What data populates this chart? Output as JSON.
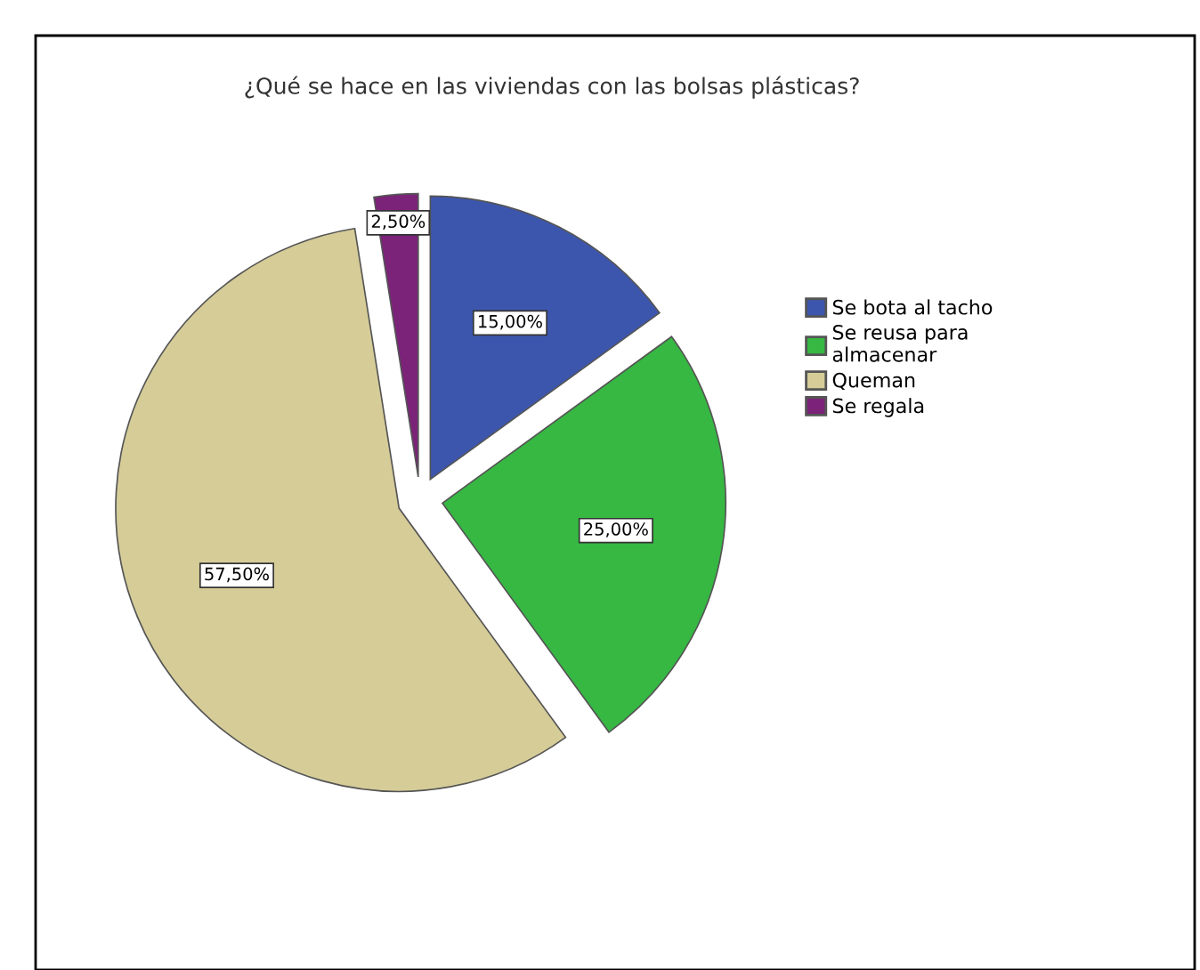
{
  "chart_data": {
    "type": "pie",
    "title": "¿Qué se hace en las viviendas con las bolsas plásticas?",
    "categories": [
      "Se bota al tacho",
      "Se reusa para\nalmacenar",
      "Queman",
      "Se regala"
    ],
    "values": [
      15,
      25,
      57.5,
      2.5
    ],
    "colors": [
      "#3d56ad",
      "#36b843",
      "#d5cc98",
      "#7b2379"
    ],
    "value_labels": [
      "15,00%",
      "25,00%",
      "57,50%",
      "2,50%"
    ],
    "legend": "right"
  }
}
